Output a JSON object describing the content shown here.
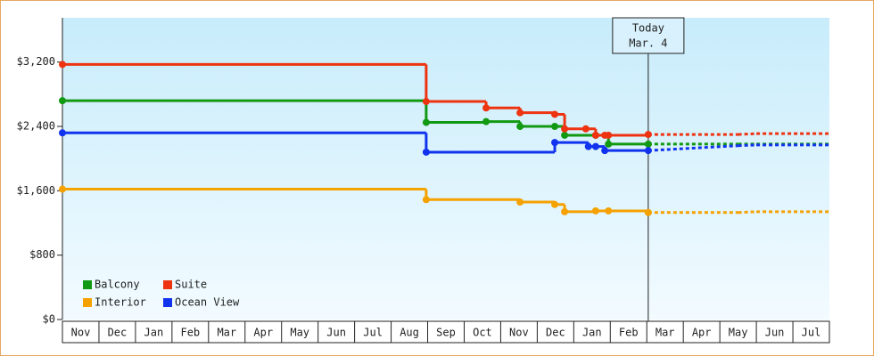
{
  "chart_data": {
    "type": "step",
    "categories": [
      "Nov",
      "Dec",
      "Jan",
      "Feb",
      "Mar",
      "Apr",
      "May",
      "Jun",
      "Jul",
      "Aug",
      "Sep",
      "Oct",
      "Nov",
      "Dec",
      "Jan",
      "Feb",
      "Mar",
      "Apr",
      "May",
      "Jun",
      "Jul"
    ],
    "xlim": [
      0,
      21
    ],
    "ylim": [
      0,
      3750
    ],
    "yticks": [
      {
        "value": 0,
        "label": "$0"
      },
      {
        "value": 800,
        "label": "$800"
      },
      {
        "value": 1600,
        "label": "$1,600"
      },
      {
        "value": 2400,
        "label": "$2,400"
      },
      {
        "value": 3200,
        "label": "$3,200"
      }
    ],
    "series": [
      {
        "name": "Balcony",
        "color": "#119911",
        "x": [
          0,
          9.96,
          11.6,
          12.53,
          13.48,
          13.75,
          14.6,
          14.95,
          16.04
        ],
        "values": [
          2720,
          2450,
          2460,
          2400,
          2400,
          2290,
          2290,
          2180,
          2180
        ],
        "forecast_x": [
          16.04,
          18.5,
          19,
          21
        ],
        "forecast_values": [
          2180,
          2180,
          2180,
          2180
        ]
      },
      {
        "name": "Suite",
        "color": "#ee3311",
        "x": [
          0,
          9.96,
          11.6,
          12.53,
          13.48,
          13.75,
          14.33,
          14.6,
          14.85,
          14.95,
          16.04
        ],
        "values": [
          3170,
          2710,
          2630,
          2570,
          2550,
          2370,
          2370,
          2290,
          2290,
          2290,
          2300
        ],
        "forecast_x": [
          16.04,
          18.5,
          19,
          21
        ],
        "forecast_values": [
          2300,
          2300,
          2310,
          2310
        ]
      },
      {
        "name": "Interior",
        "color": "#f5a100",
        "x": [
          0,
          9.96,
          12.53,
          13.48,
          13.75,
          14.6,
          14.95,
          16.04
        ],
        "values": [
          1620,
          1490,
          1460,
          1430,
          1340,
          1350,
          1350,
          1330
        ],
        "forecast_x": [
          16.04,
          18.5,
          19,
          21
        ],
        "forecast_values": [
          1330,
          1330,
          1340,
          1340
        ]
      },
      {
        "name": "Ocean View",
        "color": "#1133ee",
        "x": [
          0,
          9.96,
          13.48,
          14.4,
          14.6,
          14.85,
          16.04
        ],
        "values": [
          2320,
          2080,
          2200,
          2150,
          2150,
          2100,
          2100
        ],
        "forecast_x": [
          16.04,
          18.5,
          19,
          21
        ],
        "forecast_values": [
          2100,
          2160,
          2170,
          2170
        ]
      }
    ],
    "annotation": {
      "x": 16.04,
      "lines": [
        "Today",
        "Mar. 4"
      ]
    }
  }
}
